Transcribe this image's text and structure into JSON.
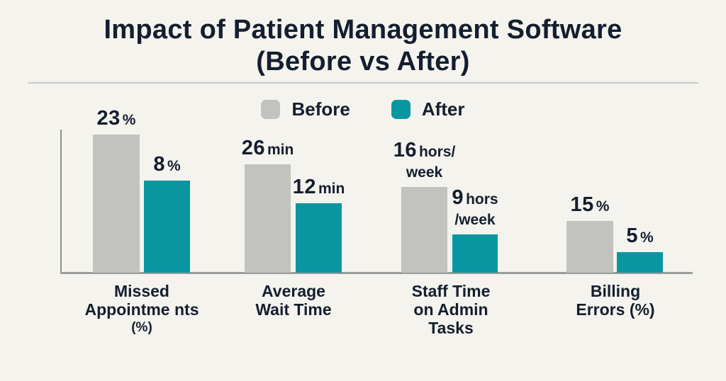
{
  "title": {
    "line1": "Impact of Patient Management Software",
    "line2": "(Before vs After)"
  },
  "colors": {
    "background": "#f4f3ee",
    "before_bar": "#c2c3be",
    "after_bar": "#0a96a0",
    "text": "#141e2e",
    "axis": "#9b9b98",
    "divider": "#c8c8c5"
  },
  "chart_data": {
    "type": "bar",
    "title": "Impact of Patient Management Software (Before vs After)",
    "legend_position": "top-center",
    "gridlines": false,
    "y_axis_tick_labels_visible": false,
    "categories": [
      "Missed Appointme nts (%)",
      "Average Wait Time",
      "Staff Time on Admin Tasks",
      "Billing Errors (%)"
    ],
    "category_lines": [
      [
        "Missed",
        "Appointme nts",
        "(%)"
      ],
      [
        "Average",
        "Wait Time"
      ],
      [
        "Staff Time",
        "on Admin",
        "Tasks"
      ],
      [
        "Billing",
        "Errors (%)"
      ]
    ],
    "units": [
      "%",
      "min",
      "hors/week",
      "%"
    ],
    "series": [
      {
        "name": "Before",
        "color": "#c2c3be",
        "values": [
          23,
          26,
          16,
          15
        ],
        "value_labels": [
          [
            "23%"
          ],
          [
            "26 min"
          ],
          [
            "16 hors/",
            "week"
          ],
          [
            "15%"
          ]
        ]
      },
      {
        "name": "After",
        "color": "#0a96a0",
        "values": [
          8,
          12,
          9,
          5
        ],
        "value_labels": [
          [
            "8%"
          ],
          [
            "12 min"
          ],
          [
            "9 hors",
            "/week"
          ],
          [
            "5%"
          ]
        ]
      }
    ]
  }
}
